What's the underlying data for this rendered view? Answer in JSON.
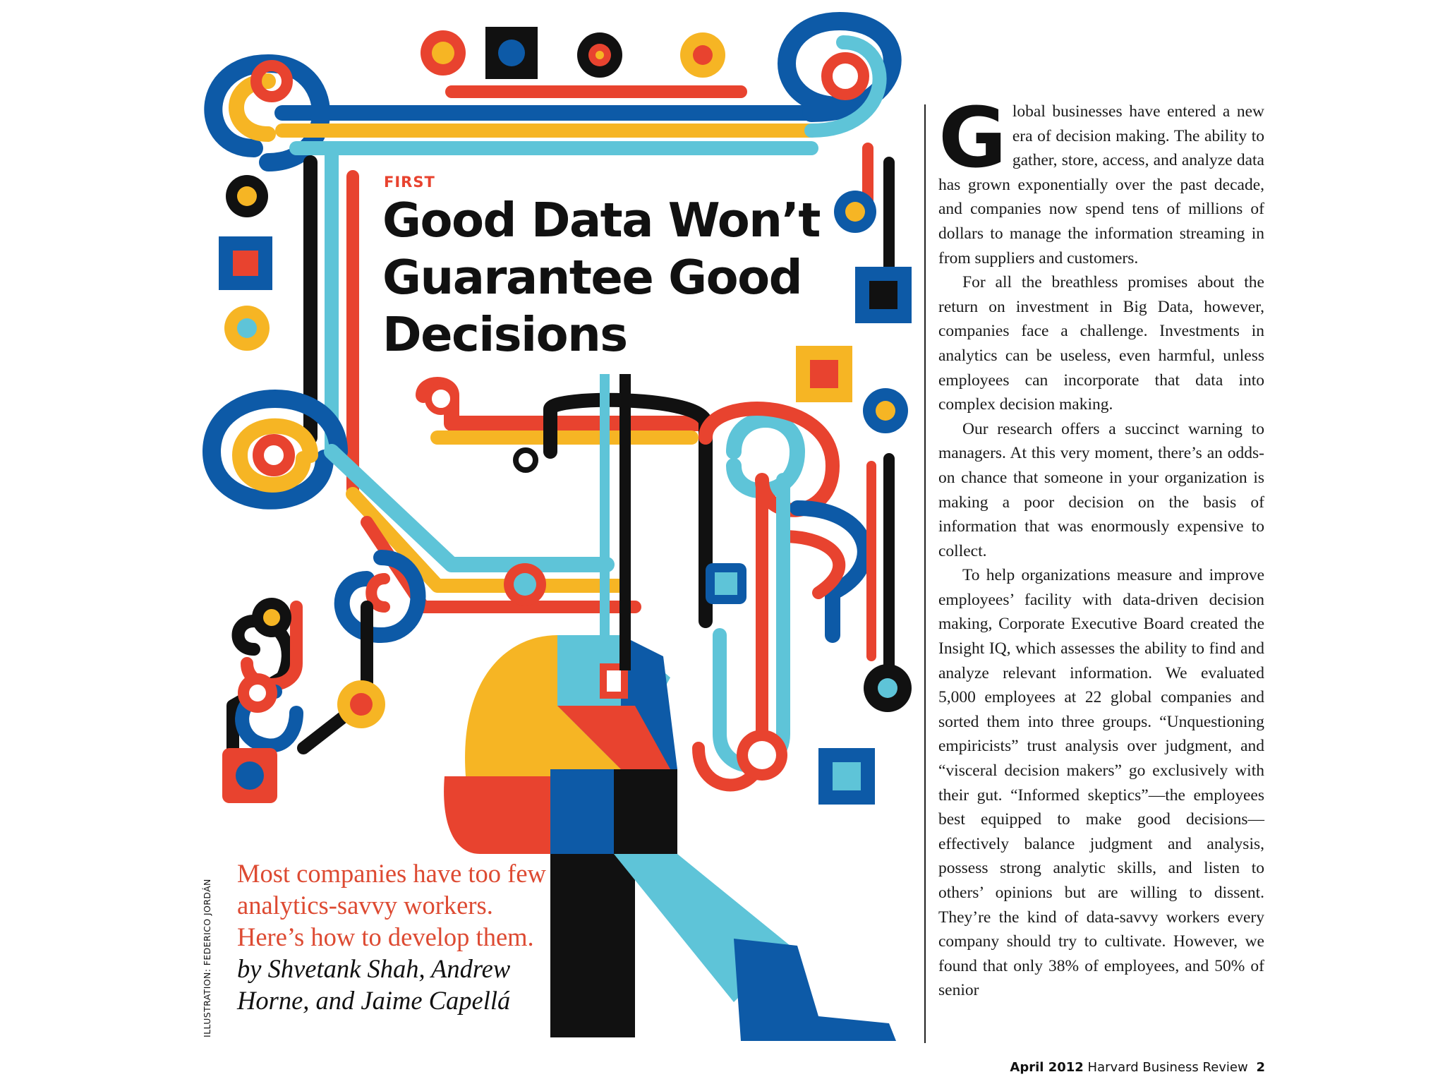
{
  "article": {
    "kicker": "FIRST",
    "headline": [
      "Good Data Won’t",
      "Guarantee Good",
      "Decisions"
    ],
    "dek": "Most companies have too few analytics-savvy workers. Here’s how to develop them.",
    "byline": "by Shvetank Shah, Andrew Horne, and Jaime Capellá",
    "illustration_credit": "ILLUSTRATION: FEDERICO JORDÁN",
    "drop_cap": "G",
    "paragraph_1": "lobal businesses have entered a new era of decision making. The ability to gather, store, access, and analyze data has grown exponentially over the past decade, and companies now spend tens of millions of dollars to manage the information streaming in from suppliers and customers.",
    "paragraph_2": "For all the breathless promises about the return on investment in Big Data, however, companies face a challenge. Investments in analytics can be useless, even harmful, unless employees can incorporate that data into complex decision making.",
    "paragraph_3": "Our research offers a succinct warning to managers. At this very moment, there’s an odds-on chance that someone in your organization is making a poor decision on the basis of information that was enormously expensive to collect.",
    "paragraph_4": "To help organizations measure and improve employees’ facility with data-driven decision making, Corporate Executive Board created the Insight IQ, which assesses the ability to find and analyze relevant information. We evaluated 5,000 employees at 22 global companies and sorted them into three groups. “Unquestioning empiricists” trust analysis over judgment, and “visceral decision makers” go exclusively with their gut. “Informed skeptics”—the employees best equipped to make good decisions—effectively balance judgment and analysis, possess strong analytic skills, and listen to others’ opinions but are willing to dissent. They’re the kind of data-savvy workers every company should try to cultivate. However, we found that only 38% of employees, and 50% of senior"
  },
  "footer": {
    "date": "April 2012",
    "publication": "Harvard Business Review",
    "page_number": "2"
  },
  "colors": {
    "red": "#e8432f",
    "blue": "#0d5aa7",
    "light_blue": "#5ec4d8",
    "yellow": "#f6b524",
    "black": "#111111"
  },
  "illustration": {
    "icon": "circuit-tubes-figure-illustration"
  }
}
